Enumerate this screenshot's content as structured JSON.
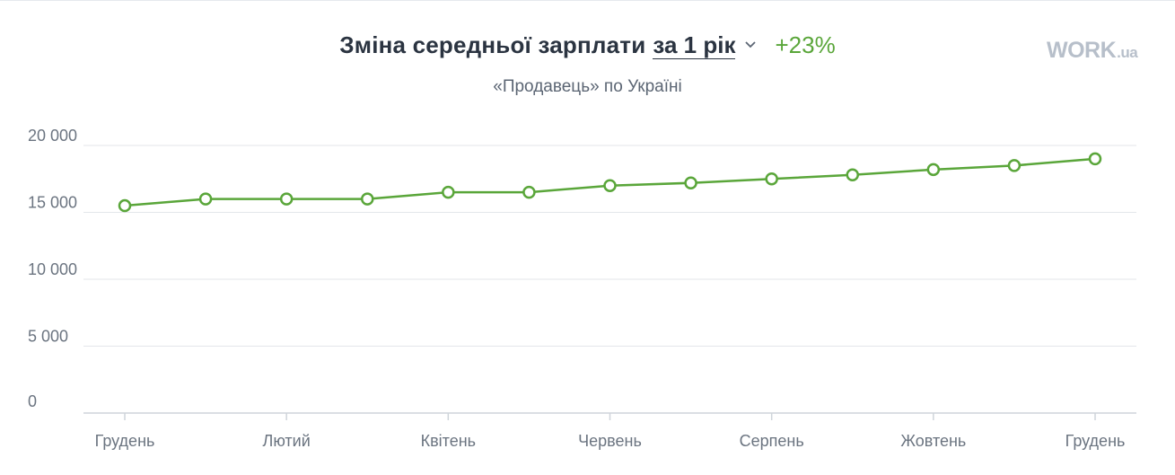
{
  "header": {
    "title": "Зміна середньої зарплати",
    "period": "за 1 рік",
    "delta": "+23%",
    "subtitle": "«Продавець» по Україні"
  },
  "logo": {
    "main": "WORK",
    "tld": ".ua"
  },
  "colors": {
    "line": "#5aa63a",
    "grid": "#e3e6ea",
    "text": "#2b3441",
    "muted": "#6b7480",
    "logo": "#b7bfca"
  },
  "chart_data": {
    "type": "line",
    "title": "Зміна середньої зарплати за 1 рік",
    "subtitle": "«Продавець» по Україні",
    "ylim": [
      0,
      20000
    ],
    "yticks": [
      0,
      5000,
      10000,
      15000,
      20000
    ],
    "ytick_labels": [
      "0",
      "5 000",
      "10 000",
      "15 000",
      "20 000"
    ],
    "xtick_labels": [
      "Грудень",
      "Лютий",
      "Квітень",
      "Червень",
      "Серпень",
      "Жовтень",
      "Грудень"
    ],
    "grid": true,
    "series": [
      {
        "values": [
          15500,
          16000,
          16000,
          16000,
          16500,
          16500,
          17000,
          17200,
          17500,
          17800,
          18200,
          18500,
          19000
        ]
      }
    ]
  }
}
